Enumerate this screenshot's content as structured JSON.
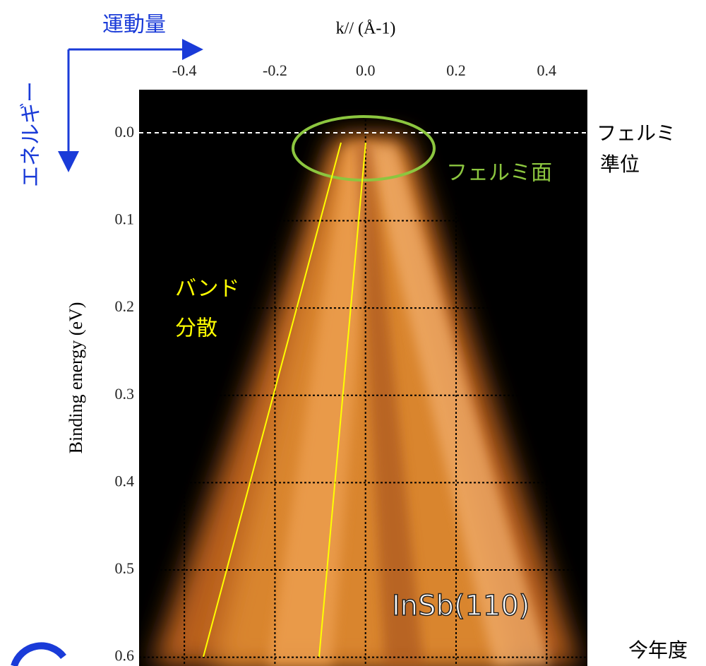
{
  "chart_data": {
    "type": "image",
    "x_label": "k// (Å-1)",
    "y_label": "Binding energy (eV)",
    "xlim": [
      -0.5,
      0.49
    ],
    "ylim": [
      -0.05,
      0.61
    ],
    "xticks": [
      -0.4,
      -0.2,
      {
        "value": 0,
        "label": "0.0"
      },
      0.2,
      0.4
    ],
    "yticks": [
      {
        "value": 0,
        "label": "0.0"
      },
      0.1,
      0.2,
      0.3,
      0.4,
      0.5,
      0.6
    ],
    "grid": true,
    "annotations": {
      "momentum": "運動量",
      "energy": "エネルギー",
      "fermi_level_1": "フェルミ",
      "fermi_level_2": "準位",
      "fermi_surface": "フェルミ面",
      "band_1": "バンド",
      "band_2": "分散",
      "sample": "InSb(110)",
      "this_year": "今年度"
    }
  }
}
